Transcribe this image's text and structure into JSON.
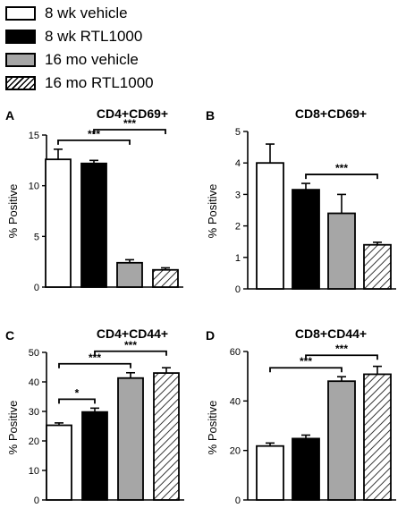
{
  "legend": [
    {
      "label": "8 wk vehicle",
      "fill": "white"
    },
    {
      "label": "8 wk RTL1000",
      "fill": "black"
    },
    {
      "label": "16 mo vehicle",
      "fill": "gray"
    },
    {
      "label": "16 mo RTL1000",
      "fill": "hatch"
    }
  ],
  "colors": {
    "white": "#ffffff",
    "black": "#000000",
    "gray": "#a6a6a6",
    "stroke": "#000000"
  },
  "chart_data": [
    {
      "type": "bar",
      "panel_letter": "A",
      "title": "CD4+CD69+",
      "ylabel": "% Positive",
      "ylim": [
        0,
        15
      ],
      "yticks": [
        0,
        5,
        10,
        15
      ],
      "tick_labels": [
        "0",
        "5",
        "10",
        "15"
      ],
      "categories": [
        "8 wk vehicle",
        "8 wk RTL1000",
        "16 mo vehicle",
        "16 mo RTL1000"
      ],
      "values": [
        12.6,
        12.2,
        2.4,
        1.7
      ],
      "errors": [
        1.0,
        0.3,
        0.3,
        0.2
      ],
      "significance": [
        {
          "from": 0,
          "to": 2,
          "label": "***"
        },
        {
          "from": 1,
          "to": 3,
          "label": "***"
        }
      ]
    },
    {
      "type": "bar",
      "panel_letter": "B",
      "title": "CD8+CD69+",
      "ylabel": "% Positive",
      "ylim": [
        0,
        5
      ],
      "yticks": [
        0,
        1,
        2,
        3,
        4,
        5
      ],
      "tick_labels": [
        "0",
        "1",
        "2",
        "3",
        "4",
        "5"
      ],
      "categories": [
        "8 wk vehicle",
        "8 wk RTL1000",
        "16 mo vehicle",
        "16 mo RTL1000"
      ],
      "values": [
        4.0,
        3.15,
        2.4,
        1.4
      ],
      "errors": [
        0.6,
        0.2,
        0.6,
        0.08
      ],
      "significance": [
        {
          "from": 1,
          "to": 3,
          "label": "***"
        }
      ]
    },
    {
      "type": "bar",
      "panel_letter": "C",
      "title": "CD4+CD44+",
      "ylabel": "% Positive",
      "ylim": [
        0,
        50
      ],
      "yticks": [
        0,
        10,
        20,
        30,
        40,
        50
      ],
      "tick_labels": [
        "0",
        "10",
        "20",
        "30",
        "40",
        "50"
      ],
      "categories": [
        "8 wk vehicle",
        "8 wk RTL1000",
        "16 mo vehicle",
        "16 mo RTL1000"
      ],
      "values": [
        25.3,
        29.8,
        41.3,
        43.0
      ],
      "errors": [
        0.8,
        1.3,
        1.8,
        1.8
      ],
      "significance": [
        {
          "from": 0,
          "to": 1,
          "label": "*"
        },
        {
          "from": 0,
          "to": 2,
          "label": "***"
        },
        {
          "from": 1,
          "to": 3,
          "label": "***"
        }
      ]
    },
    {
      "type": "bar",
      "panel_letter": "D",
      "title": "CD8+CD44+",
      "ylabel": "% Positive",
      "ylim": [
        0,
        60
      ],
      "yticks": [
        0,
        20,
        40,
        60
      ],
      "tick_labels": [
        "0",
        "20",
        "40",
        "60"
      ],
      "categories": [
        "8 wk vehicle",
        "8 wk RTL1000",
        "16 mo vehicle",
        "16 mo RTL1000"
      ],
      "values": [
        21.8,
        24.8,
        48.0,
        50.8
      ],
      "errors": [
        1.2,
        1.4,
        1.8,
        3.2
      ],
      "significance": [
        {
          "from": 0,
          "to": 2,
          "label": "***"
        },
        {
          "from": 1,
          "to": 3,
          "label": "***"
        }
      ]
    }
  ]
}
